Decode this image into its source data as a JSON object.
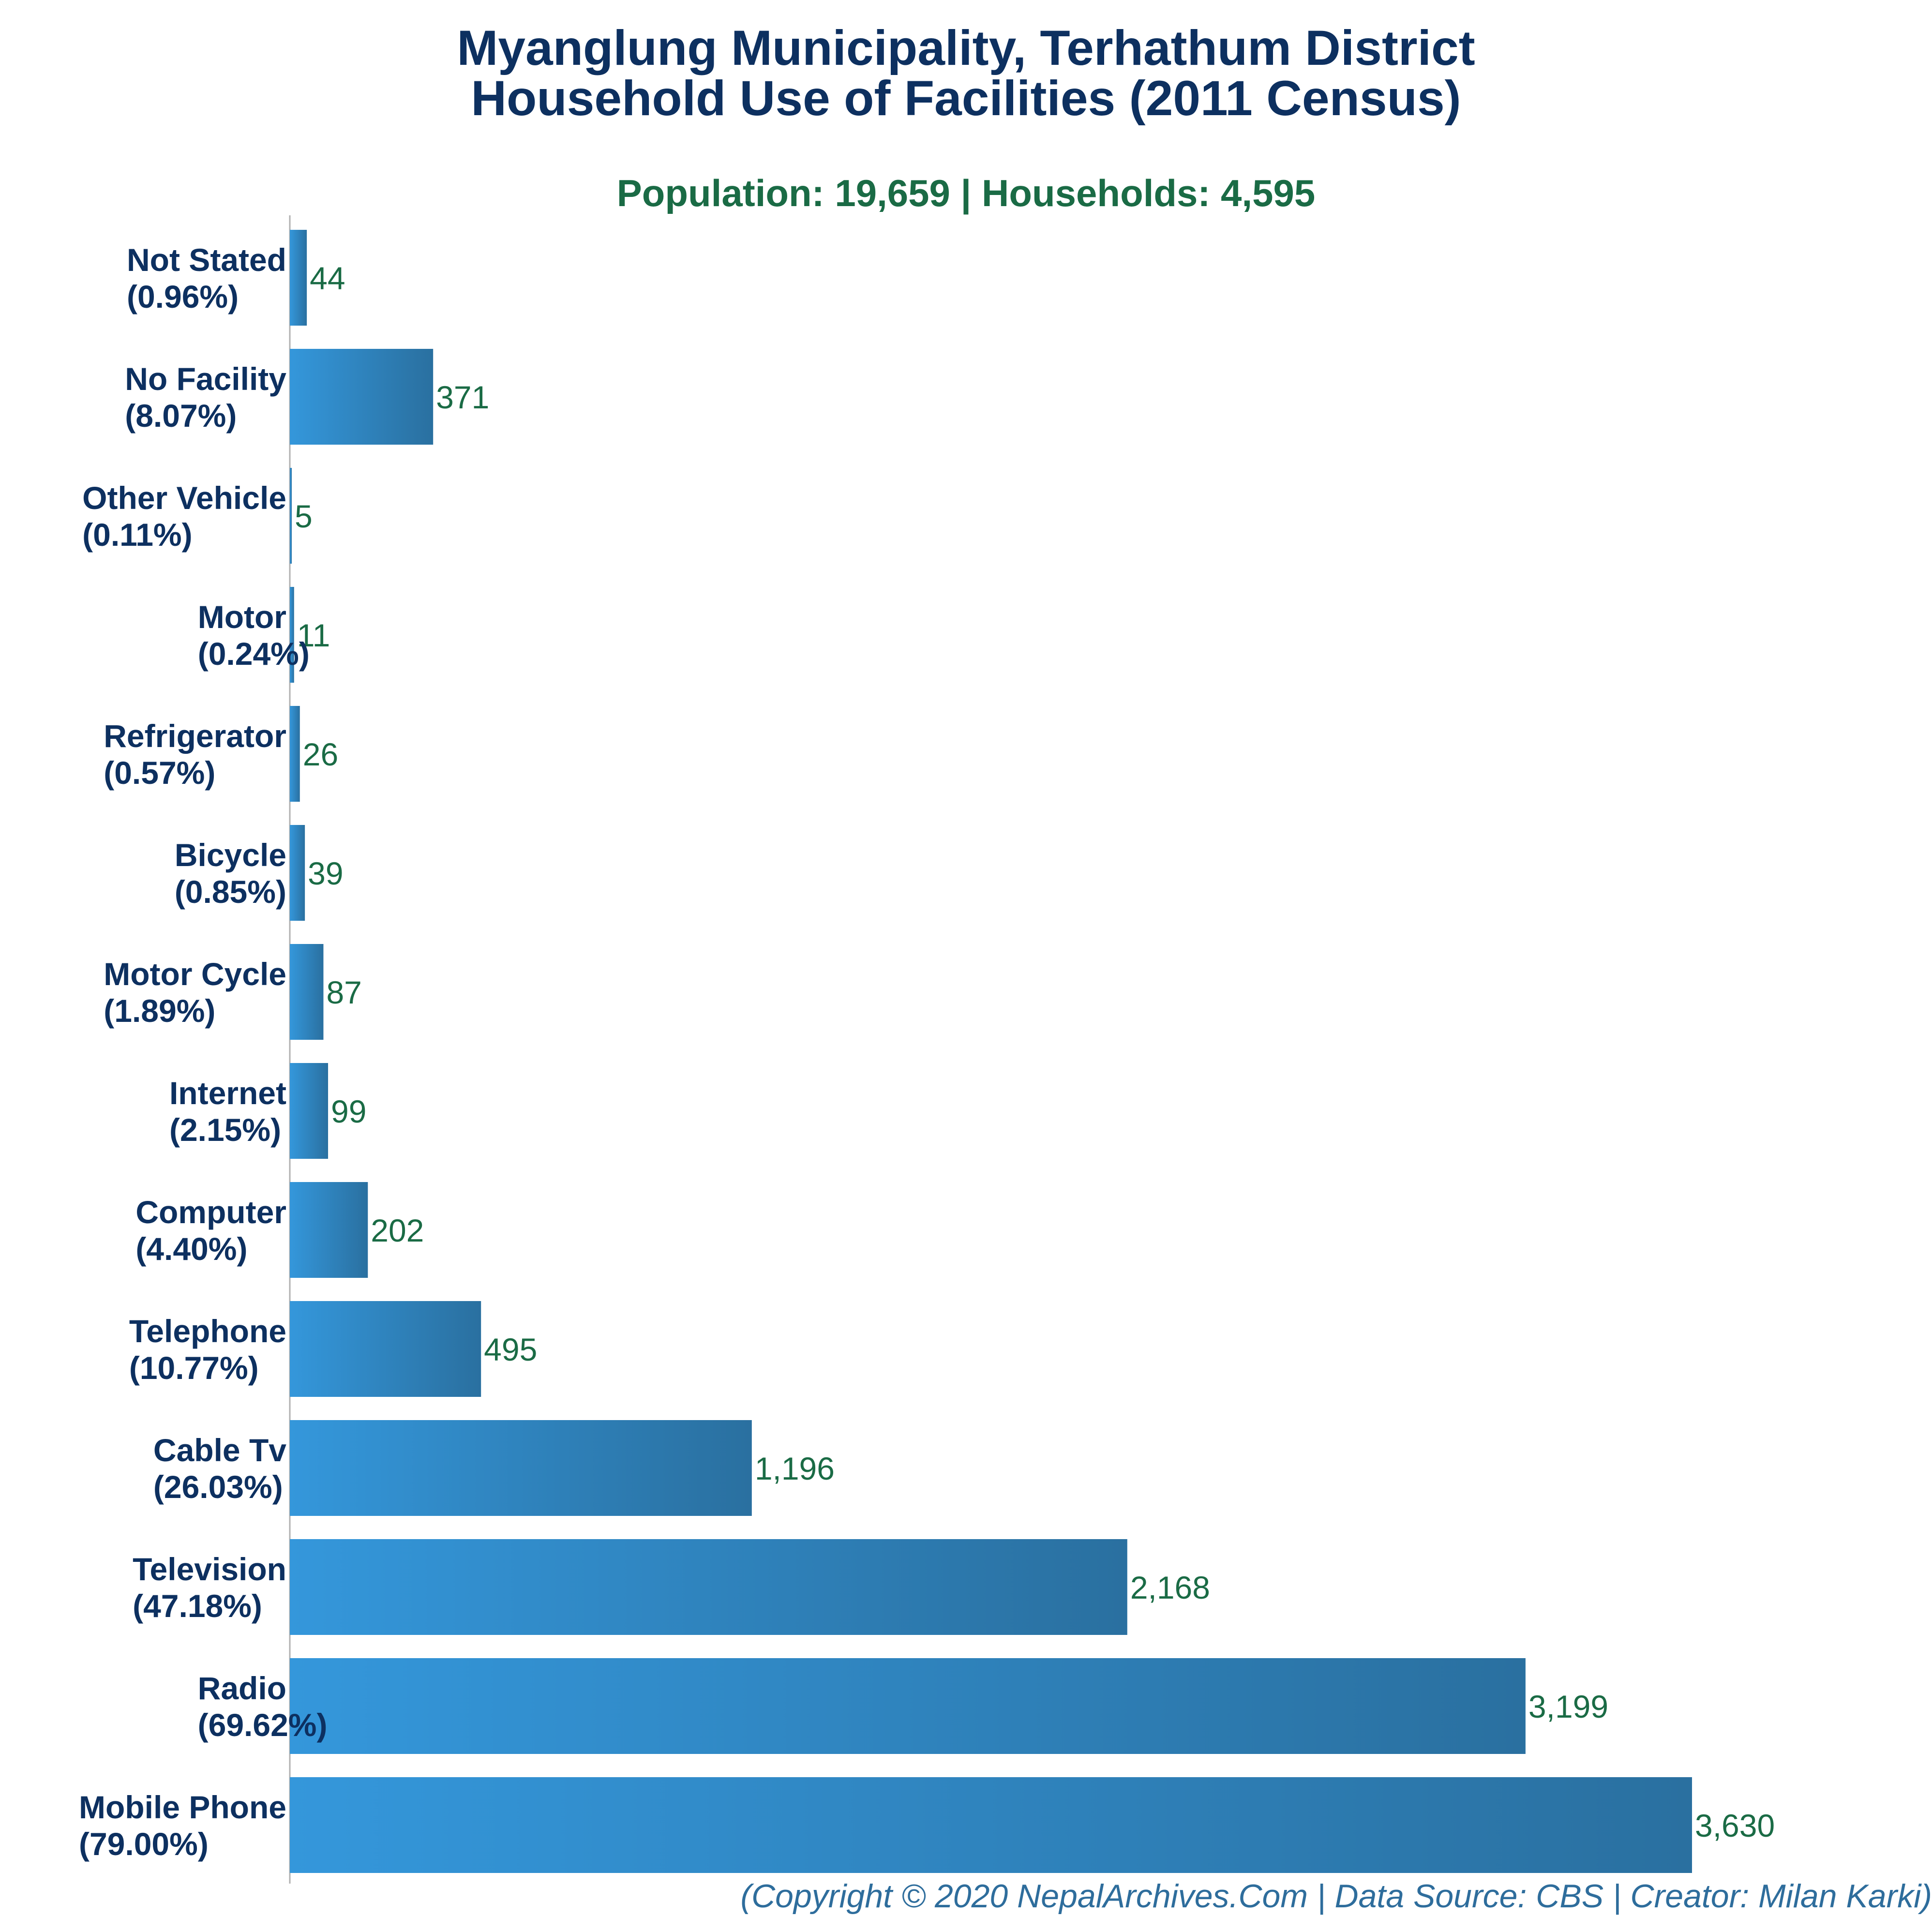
{
  "chart_data": {
    "type": "bar",
    "orientation": "horizontal",
    "title": [
      "Myanglung Municipality, Terhathum District",
      "Household Use of Facilities (2011 Census)"
    ],
    "subtitle": "Population: 19,659 | Households: 4,595",
    "credit": "(Copyright © 2020 NepalArchives.Com | Data Source: CBS | Creator: Milan Karki)",
    "categories": [
      {
        "name": "Not Stated",
        "pct": "(0.96%)",
        "value": 44,
        "value_label": "44"
      },
      {
        "name": "No Facility",
        "pct": "(8.07%)",
        "value": 371,
        "value_label": "371"
      },
      {
        "name": "Other Vehicle",
        "pct": "(0.11%)",
        "value": 5,
        "value_label": "5"
      },
      {
        "name": "Motor",
        "pct": "(0.24%)",
        "value": 11,
        "value_label": "11"
      },
      {
        "name": "Refrigerator",
        "pct": "(0.57%)",
        "value": 26,
        "value_label": "26"
      },
      {
        "name": "Bicycle",
        "pct": "(0.85%)",
        "value": 39,
        "value_label": "39"
      },
      {
        "name": "Motor Cycle",
        "pct": "(1.89%)",
        "value": 87,
        "value_label": "87"
      },
      {
        "name": "Internet",
        "pct": "(2.15%)",
        "value": 99,
        "value_label": "99"
      },
      {
        "name": "Computer",
        "pct": "(4.40%)",
        "value": 202,
        "value_label": "202"
      },
      {
        "name": "Telephone",
        "pct": "(10.77%)",
        "value": 495,
        "value_label": "495"
      },
      {
        "name": "Cable Tv",
        "pct": "(26.03%)",
        "value": 1196,
        "value_label": "1,196"
      },
      {
        "name": "Television",
        "pct": "(47.18%)",
        "value": 2168,
        "value_label": "2,168"
      },
      {
        "name": "Radio",
        "pct": "(69.62%)",
        "value": 3199,
        "value_label": "3,199"
      },
      {
        "name": "Mobile Phone",
        "pct": "(79.00%)",
        "value": 3630,
        "value_label": "3,630"
      }
    ],
    "xlim": [
      0,
      3630
    ],
    "grid": false,
    "bar_color_start": "#3497db",
    "bar_color_end": "#2a70a0",
    "label_color": "#0d3060",
    "value_color": "#1a6b45",
    "subtitle_color": "#1a6b45",
    "credit_color": "#2e6d9c"
  }
}
